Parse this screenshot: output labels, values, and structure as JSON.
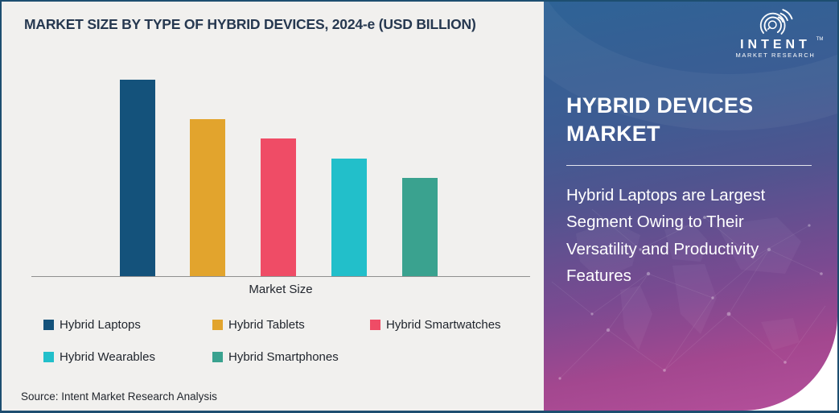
{
  "header": {
    "title": "MARKET SIZE BY TYPE OF HYBRID DEVICES, 2024-e (USD BILLION)"
  },
  "chart_data": {
    "type": "bar",
    "title": "MARKET SIZE BY TYPE OF HYBRID DEVICES, 2024-e (USD BILLION)",
    "categories": [
      "Hybrid Laptops",
      "Hybrid Tablets",
      "Hybrid Smartwatches",
      "Hybrid Wearables",
      "Hybrid Smartphones"
    ],
    "values": [
      100,
      80,
      70,
      60,
      50
    ],
    "values_note": "no numeric value axis is shown in the figure; values are relative bar heights with tallest bar = 100",
    "xlabel": "Market Size",
    "ylabel": "",
    "y_axis_ticks": "none",
    "grid": false,
    "legend_position": "bottom",
    "colors": [
      "#14527b",
      "#e2a42d",
      "#ef4c66",
      "#22bfca",
      "#3aa28f"
    ]
  },
  "source": {
    "text": "Source: Intent Market Research Analysis"
  },
  "panel": {
    "title": "HYBRID DEVICES MARKET",
    "subtitle": "Hybrid Laptops are Largest Segment Owing to Their Versatility and Productivity Features",
    "gradient_top": "#2e6396",
    "gradient_bottom": "#b5509b",
    "logo": {
      "word": "INTENT",
      "trademark": "TM",
      "subtext": "MARKET RESEARCH"
    }
  },
  "frame": {
    "border_color": "#1d4e70",
    "chart_background": "#f1f0ee"
  }
}
